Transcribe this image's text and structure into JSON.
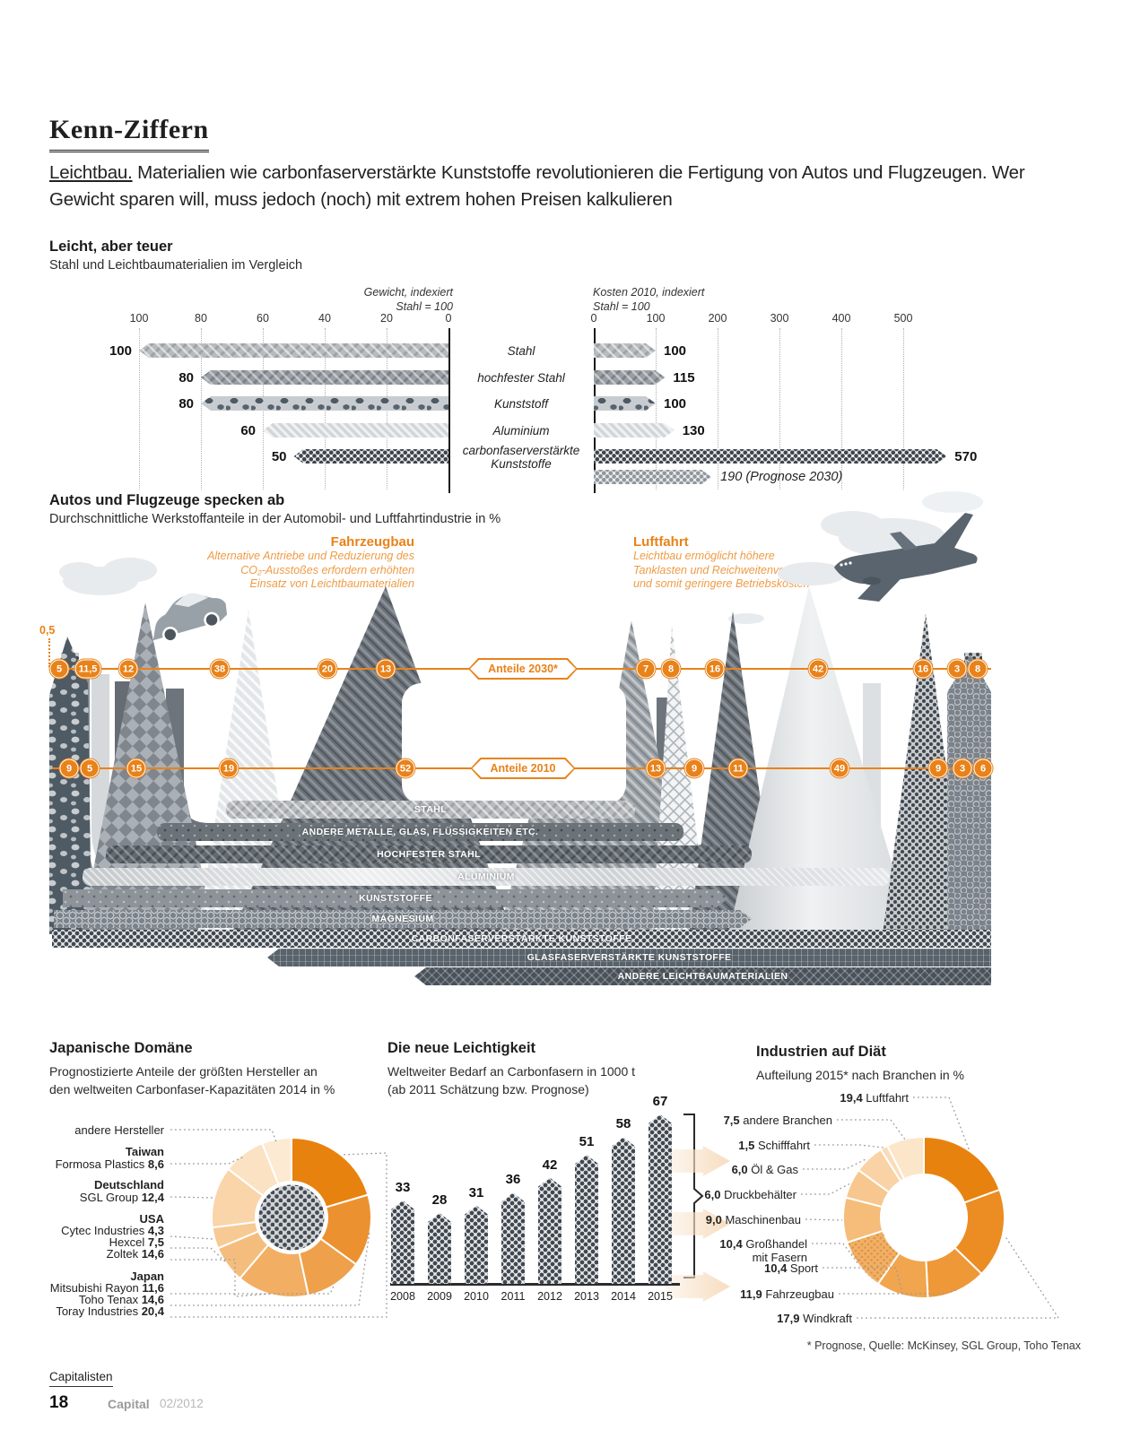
{
  "accent_orange": "#e8821a",
  "header": {
    "title": "Kenn-Ziffern",
    "intro_lead": "Leichtbau.",
    "intro_rest": " Materialien wie carbonfaserverstärkte Kunststoffe revolutionieren die Fertigung von Autos und Flugzeugen. Wer Gewicht sparen will, muss jedoch (noch) mit extrem hohen Preisen kalkulieren"
  },
  "footnote": "* Prognose, Quelle: McKinsey, SGL Group, Toho Tenax",
  "footer": {
    "section": "Capitalisten",
    "page_number": "18",
    "magazine": "Capital",
    "issue": "02/2012"
  },
  "chart_data": [
    {
      "id": "leicht_aber_teuer",
      "type": "bar",
      "title": "Leicht, aber teuer",
      "subtitle": "Stahl und Leichtbaumaterialien im Vergleich",
      "categories": [
        "Stahl",
        "hochfester Stahl",
        "Kunststoff",
        "Aluminium",
        "carbonfaserverstärkte Kunststoffe"
      ],
      "series": [
        {
          "name": "Gewicht, indexiert",
          "axis_note": "Stahl = 100",
          "orientation": "right-to-left",
          "ticks": [
            "100",
            "80",
            "60",
            "40",
            "20",
            "0"
          ],
          "xlim": [
            0,
            100
          ],
          "values": [
            100,
            80,
            80,
            60,
            50
          ],
          "value_labels": [
            "100",
            "80",
            "80",
            "60",
            "50"
          ]
        },
        {
          "name": "Kosten 2010, indexiert",
          "axis_note": "Stahl = 100",
          "orientation": "left-to-right",
          "ticks": [
            "0",
            "100",
            "200",
            "300",
            "400",
            "500"
          ],
          "xlim": [
            0,
            500
          ],
          "values": [
            100,
            115,
            100,
            130,
            570
          ],
          "value_labels": [
            "100",
            "115",
            "100",
            "130",
            "570"
          ],
          "forecast_bar": {
            "category": "carbonfaserverstärkte Kunststoffe",
            "value": 190,
            "label": "190 (Prognose 2030)"
          }
        }
      ]
    },
    {
      "id": "werkstoffanteile",
      "type": "area",
      "title": "Autos und Flugzeuge specken ab",
      "subtitle": "Durchschnittliche Werkstoffanteile in der Automobil- und Luftfahrtindustrie in %",
      "sectors": [
        {
          "name": "Fahrzeugbau",
          "annotation": "Alternative Antriebe und Reduzierung des CO₂-Ausstoßes erfordern erhöhten Einsatz von Leichtbaumaterialien"
        },
        {
          "name": "Luftfahrt",
          "annotation": "Leichtbau ermöglicht höhere Tanklasten und Reichweitenvorteile und somit geringere Betriebskosten"
        }
      ],
      "share_rows": [
        {
          "label": "Anteile 2030*",
          "float_label": "0,5",
          "fahrzeugbau": [
            "5",
            "11,5",
            "12",
            "38",
            "20",
            "13"
          ],
          "luftfahrt": [
            "7",
            "8",
            "16",
            "42",
            "16",
            "3",
            "8"
          ]
        },
        {
          "label": "Anteile 2010",
          "float_label": "",
          "fahrzeugbau": [
            "9",
            "5",
            "15",
            "19",
            "52"
          ],
          "luftfahrt": [
            "13",
            "9",
            "11",
            "49",
            "9",
            "3",
            "6"
          ]
        }
      ],
      "materials": [
        "STAHL",
        "ANDERE METALLE, GLAS, FLÜSSIGKEITEN ETC.",
        "HOCHFESTER STAHL",
        "ALUMINIUM",
        "KUNSTSTOFFE",
        "MAGNESIUM",
        "CARBONFASERVERSTÄRKTE KUNSTSTOFFE",
        "GLASFASERVERSTÄRKTE KUNSTSTOFFE",
        "ANDERE LEICHTBAUMATERIALIEN"
      ]
    },
    {
      "id": "japanische_domaene",
      "type": "pie",
      "title": "Japanische Domäne",
      "subtitle": "Prognostizierte Anteile der größten Hersteller an den weltweiten Carbonfaser-Kapazitäten 2014 in %",
      "slices": [
        {
          "label": "Toray Industries",
          "country": "Japan",
          "value": 20.4,
          "display": "20,4",
          "color": "#e8820f"
        },
        {
          "label": "Toho Tenax",
          "country": "Japan",
          "value": 14.6,
          "display": "14,6",
          "color": "#ec9130"
        },
        {
          "label": "Mitsubishi Rayon",
          "country": "Japan",
          "value": 11.6,
          "display": "11,6",
          "color": "#efa04b"
        },
        {
          "label": "Zoltek",
          "country": "USA",
          "value": 14.6,
          "display": "14,6",
          "color": "#f2ae62"
        },
        {
          "label": "Hexcel",
          "country": "USA",
          "value": 7.5,
          "display": "7,5",
          "color": "#f5bd7d"
        },
        {
          "label": "Cytec Industries",
          "country": "USA",
          "value": 4.3,
          "display": "4,3",
          "color": "#f7ca94"
        },
        {
          "label": "SGL Group",
          "country": "Deutschland",
          "value": 12.4,
          "display": "12,4",
          "color": "#f9d5a9"
        },
        {
          "label": "Formosa Plastics",
          "country": "Taiwan",
          "value": 8.6,
          "display": "8,6",
          "color": "#fbe2c2"
        },
        {
          "label": "andere Hersteller",
          "country": "",
          "value": 6.0,
          "display": "",
          "color": "#fcead3"
        }
      ],
      "legend": [
        {
          "group": "",
          "entries": [
            {
              "name": "andere Hersteller",
              "display": ""
            }
          ]
        },
        {
          "group": "Taiwan",
          "entries": [
            {
              "name": "Formosa Plastics",
              "display": "8,6"
            }
          ]
        },
        {
          "group": "Deutschland",
          "entries": [
            {
              "name": "SGL Group",
              "display": "12,4"
            }
          ]
        },
        {
          "group": "USA",
          "entries": [
            {
              "name": "Cytec Industries",
              "display": "4,3"
            },
            {
              "name": "Hexcel",
              "display": "7,5"
            },
            {
              "name": "Zoltek",
              "display": "14,6"
            }
          ]
        },
        {
          "group": "Japan",
          "entries": [
            {
              "name": "Mitsubishi Rayon",
              "display": "11,6"
            },
            {
              "name": "Toho Tenax",
              "display": "14,6"
            },
            {
              "name": "Toray Industries",
              "display": "20,4"
            }
          ]
        }
      ]
    },
    {
      "id": "die_neue_leichtigkeit",
      "type": "bar",
      "title": "Die neue Leichtigkeit",
      "subtitle": "Weltweiter Bedarf an Carbonfasern in 1000 t",
      "note": "(ab 2011 Schätzung bzw. Prognose)",
      "categories": [
        "2008",
        "2009",
        "2010",
        "2011",
        "2012",
        "2013",
        "2014",
        "2015"
      ],
      "values": [
        33,
        28,
        31,
        36,
        42,
        51,
        58,
        67
      ],
      "ylabel": "1000 t"
    },
    {
      "id": "industrien_auf_diaet",
      "type": "pie",
      "title": "Industrien auf Diät",
      "subtitle": "Aufteilung 2015* nach Branchen in %",
      "slices": [
        {
          "label": "Luftfahrt",
          "value": 19.4,
          "display": "19,4",
          "color": "#e8820f"
        },
        {
          "label": "Windkraft",
          "value": 17.9,
          "display": "17,9",
          "color": "#eb8d22",
          "textured": false
        },
        {
          "label": "Fahrzeugbau",
          "value": 11.9,
          "display": "11,9",
          "color": "#ee9838"
        },
        {
          "label": "Sport",
          "value": 10.4,
          "display": "10,4",
          "color": "#f1a54e"
        },
        {
          "label": "Großhandel mit Fasern",
          "value": 10.4,
          "display": "10,4",
          "color": "#f3b064",
          "textured": true
        },
        {
          "label": "Maschinenbau",
          "value": 9.0,
          "display": "9,0",
          "color": "#f5bc7a"
        },
        {
          "label": "Druckbehälter",
          "value": 6.0,
          "display": "6,0",
          "color": "#f7c78f"
        },
        {
          "label": "Öl & Gas",
          "value": 6.0,
          "display": "6,0",
          "color": "#f9d2a5"
        },
        {
          "label": "Schifffahrt",
          "value": 1.5,
          "display": "1,5",
          "color": "#fadcb8"
        },
        {
          "label": "andere Branchen",
          "value": 7.5,
          "display": "7,5",
          "color": "#fbe6ca"
        }
      ],
      "legend_order": [
        0,
        9,
        8,
        7,
        6,
        5,
        4,
        3,
        2,
        1
      ]
    }
  ]
}
